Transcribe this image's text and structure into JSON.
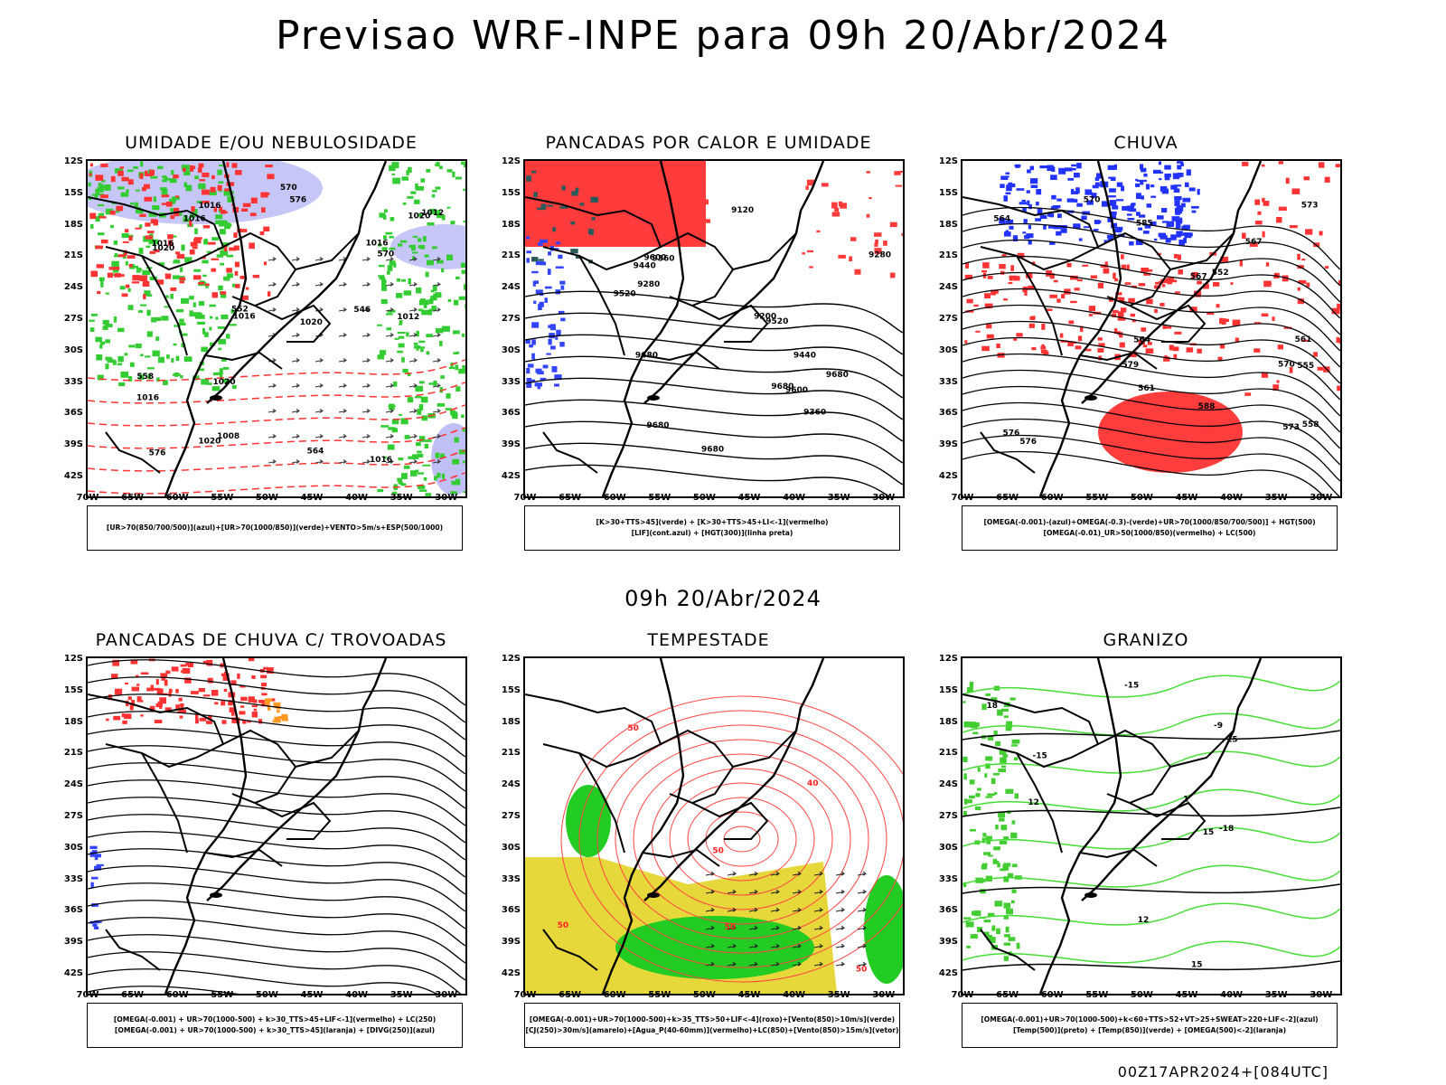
{
  "header": {
    "title": "Previsao WRF-INPE  para 09h 20/Abr/2024",
    "mid_title": "09h 20/Abr/2024",
    "footer": "00Z17APR2024+[084UTC]"
  },
  "axes": {
    "lat_labels": [
      "12S",
      "15S",
      "18S",
      "21S",
      "24S",
      "27S",
      "30S",
      "33S",
      "36S",
      "39S",
      "42S"
    ],
    "lon_labels": [
      "70W",
      "65W",
      "60W",
      "55W",
      "50W",
      "45W",
      "40W",
      "35W",
      "30W"
    ]
  },
  "panels": [
    {
      "title": "UMIDADE E/OU NEBULOSIDADE",
      "legend": [
        "[UR>70(850/700/500)](azul)+[UR>70(1000/850)](verde)+VENTO>5m/s+ESP(500/1000)"
      ],
      "labels": [
        "1016",
        "1012",
        "1016",
        "1016",
        "1016",
        "1020",
        "1020",
        "1020",
        "1020",
        "1020",
        "1016",
        "1016",
        "1016",
        "1012",
        "1008",
        "576",
        "576",
        "570",
        "570",
        "564",
        "558",
        "552",
        "546"
      ]
    },
    {
      "title": "PANCADAS POR CALOR E UMIDADE",
      "legend": [
        "[K>30+TTS>45](verde) + [K>30+TTS>45+LI<-1](vermelho)",
        "[LIF](cont.azul) + [HGT(300)](linha preta)"
      ],
      "labels": [
        "9680",
        "9680",
        "9680",
        "9680",
        "9680",
        "9600",
        "9600",
        "9520",
        "9520",
        "9440",
        "9440",
        "9360",
        "9360",
        "9280",
        "9280",
        "9200",
        "9120"
      ]
    },
    {
      "title": "CHUVA",
      "legend": [
        "[OMEGA(-0.001)-(azul)+OMEGA(-0.3)-(verde)+UR>70(1000/850/700/500)] + HGT(500)",
        "[OMEGA(-0.01)_UR>50(1000/850)(vermelho) + LC(500)"
      ],
      "labels": [
        "585",
        "588",
        "576",
        "573",
        "570",
        "567",
        "564",
        "561",
        "558",
        "555",
        "552",
        "579",
        "576",
        "573",
        "570",
        "567",
        "564",
        "561"
      ]
    },
    {
      "title": "PANCADAS DE CHUVA C/ TROVOADAS",
      "legend": [
        "[OMEGA(-0.001) + UR>70(1000-500) + k>30_TTS>45+LIF<-1](vermelho) + LC(250)",
        "[OMEGA(-0.001) + UR>70(1000-500) + k>30_TTS>45](laranja) + [DIVG(250)](azul)"
      ],
      "labels": []
    },
    {
      "title": "TEMPESTADE",
      "legend": [
        "[OMEGA(-0.001)+UR>70(1000-500)+k>35_TTS>50+LIF<-4](roxo)+[Vento(850)>10m/s](verde)",
        "[CJ(250)>30m/s](amarelo)+[Agua_P(40-60mm)](vermelho)+LC(850)+[Vento(850)>15m/s](vetor)"
      ],
      "labels": [
        "50",
        "50",
        "50",
        "50",
        "50",
        "40"
      ]
    },
    {
      "title": "GRANIZO",
      "legend": [
        "[OMEGA(-0.001)+UR>70(1000-500)+k<60+TTS>52+VT>25+SWEAT>220+LIF<-2](azul)",
        "[Temp(500)](preto) + [Temp(850)](verde) + [OMEGA(500)<-2](laranja)"
      ],
      "labels": [
        "-9",
        "-15",
        "-15",
        "-15",
        "-18",
        "12",
        "12",
        "15",
        "15",
        "18",
        "1"
      ]
    }
  ]
}
